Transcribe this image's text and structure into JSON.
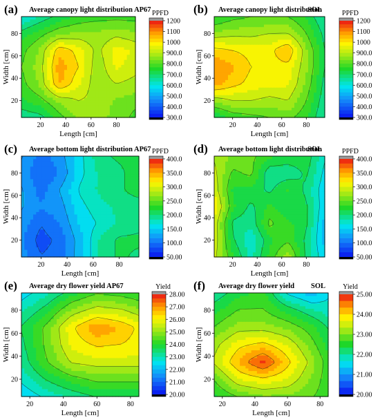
{
  "figure_name": "contour-panel-grid",
  "chart_data": [
    {
      "type": "heatmap",
      "panel_label": "(a)",
      "title": "Average canopy light distribution AP67",
      "title_suffix": "",
      "xlabel": "Length [cm]",
      "ylabel": "Width [cm]",
      "x": [
        5,
        20,
        35,
        50,
        65,
        80,
        95
      ],
      "y": [
        5,
        20,
        35,
        50,
        65,
        80,
        95
      ],
      "xticks": [
        20,
        40,
        60,
        80
      ],
      "yticks": [
        20,
        40,
        60,
        80
      ],
      "xlim": [
        5,
        95
      ],
      "ylim": [
        5,
        95
      ],
      "colorbar_label": "PPFD",
      "colorbar_ticks": [
        "1200",
        "1100",
        "1000",
        "900.0",
        "800.0",
        "700.0",
        "600.0",
        "500.0",
        "400.0",
        "300.0"
      ],
      "zlim": [
        300,
        1200
      ],
      "z": [
        [
          660,
          680,
          780,
          860,
          860,
          840,
          780
        ],
        [
          740,
          780,
          860,
          900,
          880,
          840,
          820
        ],
        [
          780,
          860,
          1060,
          960,
          860,
          900,
          880
        ],
        [
          800,
          880,
          1080,
          1000,
          860,
          960,
          920
        ],
        [
          780,
          860,
          1040,
          980,
          880,
          980,
          940
        ],
        [
          720,
          780,
          840,
          860,
          860,
          880,
          860
        ],
        [
          600,
          660,
          720,
          760,
          780,
          780,
          780
        ]
      ]
    },
    {
      "type": "heatmap",
      "panel_label": "(b)",
      "title": "Average canopy light distribution",
      "title_suffix": "SOL",
      "xlabel": "Length [cm]",
      "ylabel": "Width [cm]",
      "x": [
        5,
        20,
        35,
        50,
        65,
        80,
        95
      ],
      "y": [
        5,
        20,
        35,
        50,
        65,
        80,
        95
      ],
      "xticks": [
        20,
        40,
        60,
        80
      ],
      "yticks": [
        20,
        40,
        60,
        80
      ],
      "xlim": [
        5,
        95
      ],
      "ylim": [
        5,
        95
      ],
      "colorbar_label": "PPFD",
      "colorbar_ticks": [
        "1200",
        "1100",
        "1000",
        "900.0",
        "800.0",
        "700.0",
        "600.0",
        "500.0",
        "400.0",
        "300.0"
      ],
      "zlim": [
        300,
        1200
      ],
      "z": [
        [
          700,
          760,
          780,
          800,
          820,
          760,
          640
        ],
        [
          860,
          900,
          900,
          880,
          900,
          800,
          660
        ],
        [
          1080,
          1020,
          980,
          960,
          960,
          840,
          680
        ],
        [
          1100,
          1060,
          1000,
          980,
          980,
          860,
          700
        ],
        [
          1020,
          1000,
          980,
          980,
          1060,
          860,
          700
        ],
        [
          860,
          880,
          880,
          900,
          900,
          800,
          680
        ],
        [
          740,
          780,
          800,
          800,
          800,
          740,
          640
        ]
      ]
    },
    {
      "type": "heatmap",
      "panel_label": "(c)",
      "title": "Average bottom light distribution AP67",
      "title_suffix": "",
      "xlabel": "Length [cm]",
      "ylabel": "Width [cm]",
      "x": [
        5,
        20,
        35,
        50,
        65,
        80,
        95
      ],
      "y": [
        5,
        20,
        35,
        50,
        65,
        80,
        95
      ],
      "xticks": [
        20,
        40,
        60,
        80
      ],
      "yticks": [
        20,
        40,
        60,
        80
      ],
      "xlim": [
        5,
        95
      ],
      "ylim": [
        5,
        95
      ],
      "colorbar_label": "PPFD",
      "colorbar_ticks": [
        "400.0",
        "350.0",
        "300.0",
        "250.0",
        "200.0",
        "150.0",
        "100.0",
        "50.00"
      ],
      "zlim": [
        50,
        400
      ],
      "z": [
        [
          120,
          90,
          100,
          140,
          190,
          210,
          200
        ],
        [
          110,
          80,
          95,
          140,
          190,
          210,
          210
        ],
        [
          120,
          90,
          110,
          150,
          170,
          190,
          200
        ],
        [
          130,
          110,
          120,
          160,
          180,
          190,
          190
        ],
        [
          130,
          100,
          130,
          170,
          190,
          200,
          220
        ],
        [
          120,
          90,
          110,
          160,
          190,
          200,
          220
        ],
        [
          130,
          100,
          120,
          160,
          200,
          210,
          210
        ]
      ]
    },
    {
      "type": "heatmap",
      "panel_label": "(d)",
      "title": "Average bottom light distribution",
      "title_suffix": "SOL",
      "xlabel": "Length [cm]",
      "ylabel": "Width [cm]",
      "x": [
        5,
        20,
        35,
        50,
        65,
        80,
        95
      ],
      "y": [
        5,
        20,
        35,
        50,
        65,
        80,
        95
      ],
      "xticks": [
        20,
        40,
        60,
        80
      ],
      "yticks": [
        20,
        40,
        60,
        80
      ],
      "xlim": [
        5,
        95
      ],
      "ylim": [
        5,
        95
      ],
      "colorbar_label": "PPFD",
      "colorbar_ticks": [
        "400.0",
        "350.0",
        "300.0",
        "250.0",
        "200.0",
        "150.0",
        "100.0",
        "50.00"
      ],
      "zlim": [
        50,
        400
      ],
      "z": [
        [
          290,
          230,
          180,
          230,
          280,
          200,
          150
        ],
        [
          300,
          210,
          170,
          220,
          240,
          200,
          140
        ],
        [
          300,
          200,
          190,
          250,
          230,
          210,
          140
        ],
        [
          320,
          230,
          200,
          230,
          210,
          210,
          150
        ],
        [
          300,
          220,
          220,
          200,
          230,
          200,
          150
        ],
        [
          290,
          240,
          250,
          190,
          190,
          210,
          160
        ],
        [
          280,
          260,
          250,
          230,
          220,
          220,
          170
        ]
      ]
    },
    {
      "type": "heatmap",
      "panel_label": "(e)",
      "title": "Average dry flower yield AP67",
      "title_suffix": "",
      "xlabel": "Length [cm]",
      "ylabel": "Width [cm]",
      "x": [
        15,
        30,
        45,
        60,
        75,
        85
      ],
      "y": [
        5,
        20,
        35,
        50,
        65,
        80,
        95
      ],
      "xticks": [
        20,
        40,
        60,
        80
      ],
      "yticks": [
        20,
        40,
        60,
        80
      ],
      "xlim": [
        15,
        85
      ],
      "ylim": [
        5,
        95
      ],
      "colorbar_label": "Yield",
      "colorbar_ticks": [
        "28.00",
        "27.00",
        "26.00",
        "25.00",
        "24.00",
        "23.00",
        "22.00",
        "21.00",
        "20.00"
      ],
      "zlim": [
        20,
        28
      ],
      "z": [
        [
          22.2,
          22.8,
          23.2,
          23.6,
          23.6,
          23.6
        ],
        [
          22.8,
          23.6,
          24.2,
          24.6,
          24.6,
          24.6
        ],
        [
          23.2,
          24.4,
          25.4,
          25.6,
          25.6,
          25.6
        ],
        [
          23.4,
          24.6,
          25.9,
          26.3,
          26.2,
          26.0
        ],
        [
          23.6,
          24.6,
          26.1,
          27.1,
          26.6,
          26.1
        ],
        [
          23.0,
          23.8,
          25.0,
          25.6,
          25.4,
          25.0
        ],
        [
          22.4,
          23.0,
          23.8,
          24.4,
          24.2,
          24.0
        ]
      ]
    },
    {
      "type": "heatmap",
      "panel_label": "(f)",
      "title": "Average dry flower yield",
      "title_suffix": "SOL",
      "xlabel": "Length [cm]",
      "ylabel": "Width [cm]",
      "x": [
        15,
        30,
        45,
        60,
        75,
        85
      ],
      "y": [
        5,
        20,
        35,
        50,
        65,
        80,
        95
      ],
      "xticks": [
        20,
        40,
        60,
        80
      ],
      "yticks": [
        20,
        40,
        60,
        80
      ],
      "xlim": [
        15,
        85
      ],
      "ylim": [
        5,
        95
      ],
      "colorbar_label": "Yield",
      "colorbar_ticks": [
        "25.00",
        "24.00",
        "23.00",
        "22.00",
        "21.00",
        "20.00"
      ],
      "zlim": [
        20,
        25
      ],
      "z": [
        [
          22.4,
          22.8,
          23.0,
          23.0,
          22.8,
          22.6
        ],
        [
          22.8,
          23.6,
          23.8,
          23.6,
          23.0,
          22.6
        ],
        [
          23.4,
          24.2,
          24.9,
          24.0,
          23.2,
          22.6
        ],
        [
          23.2,
          23.8,
          24.0,
          23.6,
          22.9,
          22.4
        ],
        [
          22.8,
          23.2,
          23.2,
          23.0,
          22.6,
          22.2
        ],
        [
          22.4,
          22.8,
          22.8,
          22.4,
          22.0,
          21.8
        ],
        [
          22.0,
          22.4,
          22.6,
          21.6,
          21.2,
          21.6
        ]
      ]
    }
  ]
}
